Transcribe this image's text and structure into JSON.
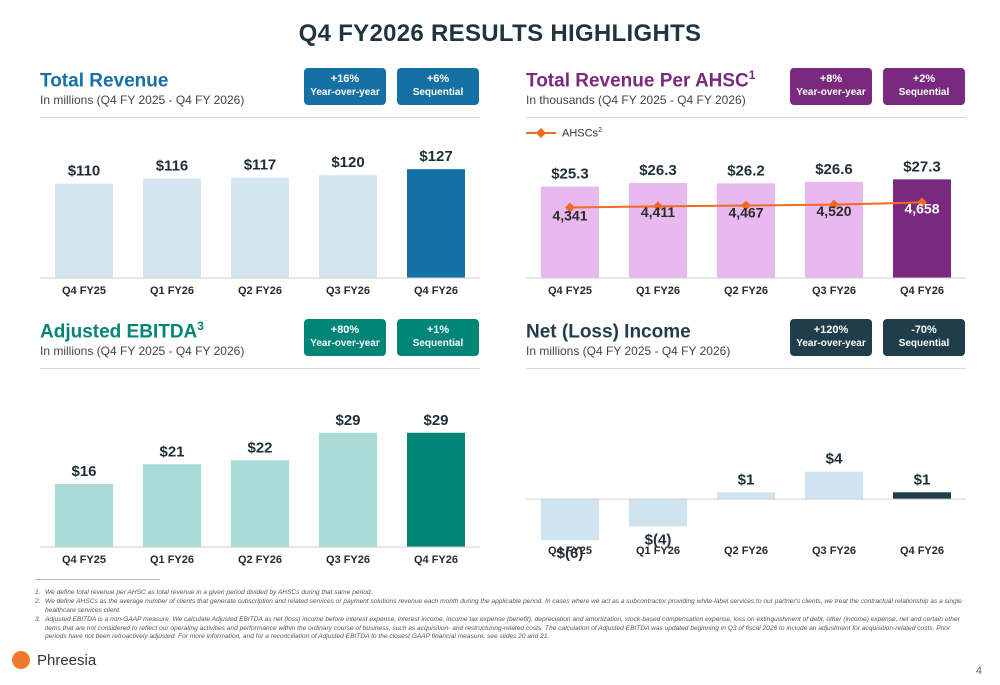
{
  "page": {
    "title": "Q4 FY2026 RESULTS HIGHLIGHTS",
    "page_number": "4",
    "logo_text": "Phreesia"
  },
  "colors": {
    "revenue_light": "#d3e6f0",
    "revenue_dark": "#1570a6",
    "ahsc_light": "#e8b9ee",
    "ahsc_dark": "#7a2a7e",
    "ahsc_line": "#f26a21",
    "ebitda_light": "#a8dbd6",
    "ebitda_dark": "#008577",
    "income_light": "#cfe4ef",
    "income_dark": "#1f3d4a"
  },
  "panels": {
    "revenue": {
      "title": "Total Revenue",
      "title_sup": "",
      "subtitle": "In millions (Q4 FY 2025 - Q4 FY 2026)",
      "badges": [
        {
          "value": "+16%",
          "label": "Year-over-year"
        },
        {
          "value": "+6%",
          "label": "Sequential"
        }
      ]
    },
    "ahsc": {
      "title": "Total Revenue Per AHSC",
      "title_sup": "1",
      "subtitle": "In thousands (Q4 FY 2025 - Q4 FY 2026)",
      "legend": "AHSCs",
      "legend_sup": "2",
      "badges": [
        {
          "value": "+8%",
          "label": "Year-over-year"
        },
        {
          "value": "+2%",
          "label": "Sequential"
        }
      ]
    },
    "ebitda": {
      "title": "Adjusted EBITDA",
      "title_sup": "3",
      "subtitle": "In millions (Q4 FY 2025 - Q4 FY 2026)",
      "badges": [
        {
          "value": "+80%",
          "label": "Year-over-year"
        },
        {
          "value": "+1%",
          "label": "Sequential"
        }
      ]
    },
    "income": {
      "title": "Net (Loss) Income",
      "title_sup": "",
      "subtitle": "In millions (Q4 FY 2025 - Q4 FY 2026)",
      "badges": [
        {
          "value": "+120%",
          "label": "Year-over-year"
        },
        {
          "value": "-70%",
          "label": "Sequential"
        }
      ]
    }
  },
  "chart_data": [
    {
      "id": "revenue",
      "type": "bar",
      "title": "Total Revenue",
      "categories": [
        "Q4 FY25",
        "Q1 FY26",
        "Q2 FY26",
        "Q3 FY26",
        "Q4 FY26"
      ],
      "values": [
        110,
        116,
        117,
        120,
        127
      ],
      "labels": [
        "$110",
        "$116",
        "$117",
        "$120",
        "$127"
      ],
      "ylim": [
        0,
        140
      ]
    },
    {
      "id": "ahsc",
      "type": "bar",
      "title": "Total Revenue Per AHSC",
      "categories": [
        "Q4 FY25",
        "Q1 FY26",
        "Q2 FY26",
        "Q3 FY26",
        "Q4 FY26"
      ],
      "values": [
        25.3,
        26.3,
        26.2,
        26.6,
        27.3
      ],
      "labels": [
        "$25.3",
        "$26.3",
        "$26.2",
        "$26.6",
        "$27.3"
      ],
      "ylim": [
        0,
        31
      ],
      "line_series": {
        "name": "AHSCs",
        "values": [
          4341,
          4411,
          4467,
          4520,
          4658
        ],
        "labels": [
          "4,341",
          "4,411",
          "4,467",
          "4,520",
          "4,658"
        ],
        "ylim": [
          0,
          6900
        ]
      }
    },
    {
      "id": "ebitda",
      "type": "bar",
      "title": "Adjusted EBITDA",
      "categories": [
        "Q4 FY25",
        "Q1 FY26",
        "Q2 FY26",
        "Q3 FY26",
        "Q4 FY26"
      ],
      "values": [
        16,
        21,
        22,
        29,
        29
      ],
      "labels": [
        "$16",
        "$21",
        "$22",
        "$29",
        "$29"
      ],
      "ylim": [
        0,
        33
      ]
    },
    {
      "id": "income",
      "type": "bar",
      "title": "Net (Loss) Income",
      "categories": [
        "Q4 FY25",
        "Q1 FY26",
        "Q2 FY26",
        "Q3 FY26",
        "Q4 FY26"
      ],
      "values": [
        -6,
        -4,
        1,
        4,
        1
      ],
      "labels": [
        "$(6)",
        "$(4)",
        "$1",
        "$4",
        "$1"
      ],
      "ylim": [
        -7,
        12
      ]
    }
  ],
  "footnotes": [
    {
      "num": "1.",
      "text": "We define total revenue per AHSC as total revenue in a given period divided by AHSCs during that same period."
    },
    {
      "num": "2.",
      "text": "We define AHSCs as the average number of clients that generate subscription and related services or payment solutions revenue each month during the applicable period. In cases where we act as a subcontractor providing white-label services to our partner's clients, we treat the contractual relationship as a single healthcare services client."
    },
    {
      "num": "3.",
      "text": "Adjusted EBITDA is a non-GAAP measure. We calculate Adjusted EBITDA as net (loss) income before interest expense, interest income, income tax expense (benefit), depreciation and amortization, stock-based compensation expense, loss on extinguishment of debt, other (income) expense, net and certain other items that are not considered to reflect our operating activities and performance within the ordinary course of business, such as acquisition- and restructuring-related costs. The calculation of Adjusted EBITDA was updated beginning in Q3 of fiscal 2026 to include an adjustment for acquisition-related costs. Prior periods have not been retroactively adjusted. For more information, and for a reconciliation of Adjusted EBITDA to the closest GAAP financial measure, see slides 20 and 21."
    }
  ]
}
